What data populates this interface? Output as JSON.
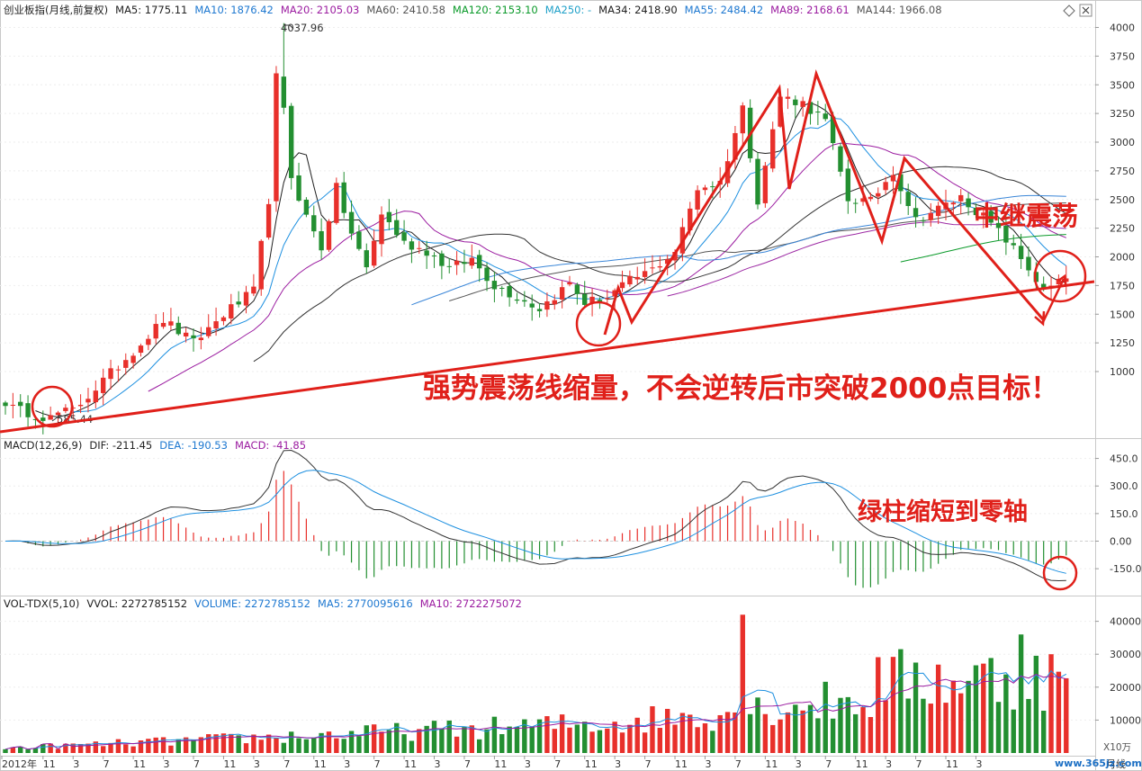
{
  "colors": {
    "up": "#e8302b",
    "down": "#238f31",
    "trend": "#e0201a",
    "ma5": "#202020",
    "ma10": "#1e90e0",
    "ma20": "#9b1ca0",
    "ma60": "#555555",
    "ma120": "#0b9a2a",
    "ma34": "#333333",
    "ma55": "#3a86d8",
    "ma89": "#9d2aa4",
    "ma144": "#777777"
  },
  "price_panel": {
    "title": "创业板指(月线,前复权)",
    "ma_labels": [
      {
        "text": "MA5: 1775.11",
        "color": "#222222"
      },
      {
        "text": "MA10: 1876.42",
        "color": "#1e78d0"
      },
      {
        "text": "MA20: 2105.03",
        "color": "#9b1ca0"
      },
      {
        "text": "MA60: 2410.58",
        "color": "#555555"
      },
      {
        "text": "MA120: 2153.10",
        "color": "#0b9a2a"
      },
      {
        "text": "MA250: -",
        "color": "#1fa0c8"
      },
      {
        "text": "MA34: 2418.90",
        "color": "#222222"
      },
      {
        "text": "MA55: 2484.42",
        "color": "#1e78d0"
      },
      {
        "text": "MA89: 2168.61",
        "color": "#9b1ca0"
      },
      {
        "text": "MA144: 1966.08",
        "color": "#555555"
      }
    ],
    "yticks": [
      "4000",
      "3750",
      "3500",
      "3250",
      "3000",
      "2750",
      "2500",
      "2250",
      "2000",
      "1750",
      "1500",
      "1250",
      "1000"
    ],
    "high_label": "4037.96",
    "low_label": "585.44",
    "annotation_main": "强势震荡线缩量，不会逆转后市突破2000点目标！",
    "annotation_relay": "中继震荡"
  },
  "macd_panel": {
    "labels": [
      {
        "text": "MACD(12,26,9)",
        "color": "#222222"
      },
      {
        "text": "DIF: -211.45",
        "color": "#222222"
      },
      {
        "text": "DEA: -190.53",
        "color": "#1e78d0"
      },
      {
        "text": "MACD: -41.85",
        "color": "#9b1ca0"
      }
    ],
    "yticks": [
      "450.0",
      "300.0",
      "150.0",
      "0.00",
      "-150.0"
    ],
    "annotation": "绿柱缩短到零轴"
  },
  "vol_panel": {
    "labels": [
      {
        "text": "VOL-TDX(5,10)",
        "color": "#222222"
      },
      {
        "text": "VVOL: 2272785152",
        "color": "#222222"
      },
      {
        "text": "VOLUME: 2272785152",
        "color": "#1e78d0"
      },
      {
        "text": "MA5: 2770095616",
        "color": "#1e78d0"
      },
      {
        "text": "MA10: 2722275072",
        "color": "#9b1ca0"
      }
    ],
    "yticks": [
      "40000",
      "30000",
      "20000",
      "10000"
    ],
    "unit": "X10万"
  },
  "x_axis": {
    "labels": [
      "2012年",
      "11",
      "3",
      "7",
      "11",
      "3",
      "7",
      "11",
      "3",
      "7",
      "11",
      "3",
      "7",
      "11",
      "3",
      "7",
      "11",
      "3",
      "7",
      "11",
      "3",
      "7",
      "11",
      "3",
      "7",
      "11",
      "3",
      "7",
      "11",
      "3",
      "7",
      "11",
      "3"
    ],
    "period": "月线"
  },
  "watermark": "www.365jz.com",
  "chart_data": {
    "type": "candlestick",
    "title": "创业板指(月线,前复权)",
    "period": "monthly",
    "y_range": [
      585.44,
      4037.96
    ],
    "extremes": {
      "high": 4037.96,
      "low": 585.44
    },
    "close_anchors": [
      [
        0,
        700
      ],
      [
        2,
        660
      ],
      [
        5,
        610
      ],
      [
        9,
        660
      ],
      [
        13,
        920
      ],
      [
        17,
        1180
      ],
      [
        21,
        1450
      ],
      [
        25,
        1250
      ],
      [
        29,
        1500
      ],
      [
        33,
        1700
      ],
      [
        36,
        2900
      ],
      [
        37,
        3400
      ],
      [
        38,
        2700
      ],
      [
        40,
        2350
      ],
      [
        42,
        2080
      ],
      [
        44,
        2600
      ],
      [
        46,
        2200
      ],
      [
        48,
        1900
      ],
      [
        50,
        2380
      ],
      [
        53,
        2120
      ],
      [
        56,
        2050
      ],
      [
        59,
        1900
      ],
      [
        62,
        1980
      ],
      [
        65,
        1750
      ],
      [
        68,
        1650
      ],
      [
        71,
        1550
      ],
      [
        75,
        1770
      ],
      [
        77,
        1600
      ],
      [
        80,
        1650
      ],
      [
        83,
        1790
      ],
      [
        86,
        1890
      ],
      [
        89,
        2050
      ],
      [
        92,
        2600
      ],
      [
        95,
        2650
      ],
      [
        98,
        3300
      ],
      [
        100,
        2500
      ],
      [
        103,
        3400
      ],
      [
        106,
        3340
      ],
      [
        109,
        3180
      ],
      [
        112,
        2500
      ],
      [
        115,
        2480
      ],
      [
        118,
        2750
      ],
      [
        121,
        2320
      ],
      [
        124,
        2420
      ],
      [
        127,
        2520
      ],
      [
        130,
        2350
      ],
      [
        133,
        2150
      ],
      [
        136,
        1900
      ],
      [
        138,
        1700
      ],
      [
        141,
        1810
      ]
    ],
    "macd": {
      "dif": -211.45,
      "dea": -190.53,
      "macd": -41.85
    },
    "volume_range_x10wan": [
      0,
      40000
    ],
    "volume_last": {
      "vvol": 2272785152,
      "ma5": 2770095616,
      "ma10": 2722275072
    }
  }
}
